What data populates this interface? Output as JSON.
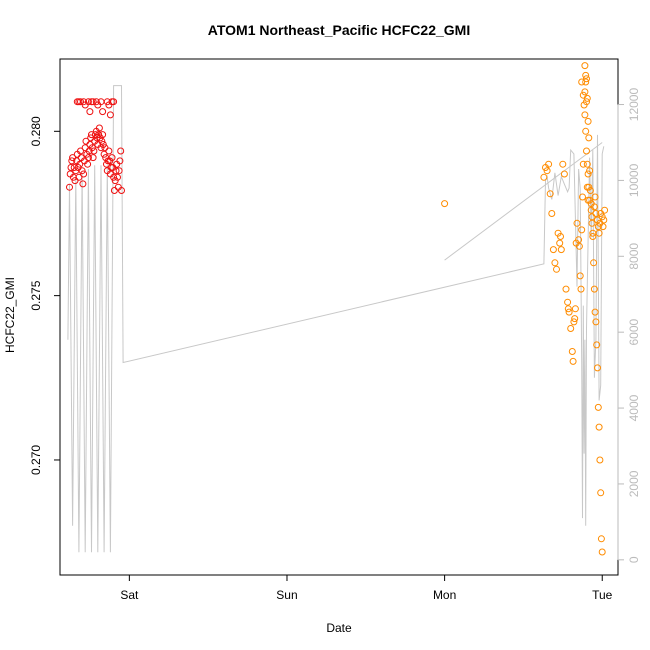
{
  "chart_data": {
    "type": "scatter",
    "title": "ATOM1 Northeast_Pacific HCFC22_GMI",
    "xlabel": "Date",
    "ylabel": "HCFC22_GMI",
    "ylabel_right": "",
    "x_ticks": [
      {
        "label": "Sat",
        "day": 0
      },
      {
        "label": "Sun",
        "day": 1
      },
      {
        "label": "Mon",
        "day": 2
      },
      {
        "label": "Tue",
        "day": 3
      }
    ],
    "xlim": [
      -0.44,
      3.1
    ],
    "ylim": [
      0.2665,
      0.2822
    ],
    "y_ticks": [
      0.27,
      0.275,
      0.28
    ],
    "y_tick_labels": [
      "0.270",
      "0.275",
      "0.280"
    ],
    "y2lim": [
      -400,
      13200
    ],
    "y2_ticks": [
      0,
      2000,
      4000,
      6000,
      8000,
      10000,
      12000
    ],
    "y2_tick_labels": [
      "0",
      "2000",
      "4000",
      "6000",
      "8000",
      "10000",
      "12000"
    ],
    "colors": {
      "series_early": "#ee1111",
      "series_late": "#ff8c00",
      "altitude_line": "#c8c8c8"
    },
    "series": [
      {
        "marker": "open-circle",
        "color": "#ee1111",
        "points": [
          [
            -0.38,
            0.2783
          ],
          [
            -0.375,
            0.2787
          ],
          [
            -0.37,
            0.2789
          ],
          [
            -0.365,
            0.2791
          ],
          [
            -0.36,
            0.2792
          ],
          [
            -0.355,
            0.2786
          ],
          [
            -0.35,
            0.2789
          ],
          [
            -0.345,
            0.2785
          ],
          [
            -0.34,
            0.2788
          ],
          [
            -0.335,
            0.2791
          ],
          [
            -0.33,
            0.2793
          ],
          [
            -0.325,
            0.2789
          ],
          [
            -0.32,
            0.2786
          ],
          [
            -0.315,
            0.279
          ],
          [
            -0.31,
            0.2794
          ],
          [
            -0.305,
            0.2792
          ],
          [
            -0.3,
            0.2788
          ],
          [
            -0.295,
            0.2784
          ],
          [
            -0.29,
            0.2787
          ],
          [
            -0.285,
            0.2791
          ],
          [
            -0.28,
            0.2795
          ],
          [
            -0.275,
            0.2797
          ],
          [
            -0.27,
            0.2793
          ],
          [
            -0.265,
            0.279
          ],
          [
            -0.26,
            0.2792
          ],
          [
            -0.255,
            0.2794
          ],
          [
            -0.25,
            0.2796
          ],
          [
            -0.245,
            0.2798
          ],
          [
            -0.24,
            0.2799
          ],
          [
            -0.235,
            0.2795
          ],
          [
            -0.23,
            0.2792
          ],
          [
            -0.225,
            0.2794
          ],
          [
            -0.22,
            0.2797
          ],
          [
            -0.215,
            0.2799
          ],
          [
            -0.21,
            0.28
          ],
          [
            -0.205,
            0.2798
          ],
          [
            -0.2,
            0.2796
          ],
          [
            -0.195,
            0.2799
          ],
          [
            -0.19,
            0.2801
          ],
          [
            -0.185,
            0.2798
          ],
          [
            -0.18,
            0.2795
          ],
          [
            -0.175,
            0.2797
          ],
          [
            -0.17,
            0.2799
          ],
          [
            -0.165,
            0.2796
          ],
          [
            -0.16,
            0.2793
          ],
          [
            -0.155,
            0.2795
          ],
          [
            -0.15,
            0.2792
          ],
          [
            -0.145,
            0.279
          ],
          [
            -0.14,
            0.2788
          ],
          [
            -0.135,
            0.2791
          ],
          [
            -0.13,
            0.2794
          ],
          [
            -0.125,
            0.2791
          ],
          [
            -0.12,
            0.2787
          ],
          [
            -0.115,
            0.2789
          ],
          [
            -0.11,
            0.2792
          ],
          [
            -0.105,
            0.2789
          ],
          [
            -0.1,
            0.2786
          ],
          [
            -0.095,
            0.2782
          ],
          [
            -0.09,
            0.2785
          ],
          [
            -0.085,
            0.2788
          ],
          [
            -0.08,
            0.279
          ],
          [
            -0.075,
            0.2786
          ],
          [
            -0.07,
            0.2783
          ],
          [
            -0.065,
            0.2788
          ],
          [
            -0.06,
            0.2791
          ],
          [
            -0.055,
            0.2794
          ],
          [
            -0.05,
            0.2782
          ],
          [
            -0.33,
            0.2809
          ],
          [
            -0.32,
            0.2809
          ],
          [
            -0.31,
            0.2809
          ],
          [
            -0.29,
            0.2809
          ],
          [
            -0.28,
            0.2808
          ],
          [
            -0.26,
            0.2809
          ],
          [
            -0.24,
            0.2809
          ],
          [
            -0.23,
            0.2809
          ],
          [
            -0.21,
            0.2809
          ],
          [
            -0.2,
            0.2808
          ],
          [
            -0.18,
            0.2809
          ],
          [
            -0.14,
            0.2809
          ],
          [
            -0.13,
            0.2808
          ],
          [
            -0.11,
            0.2809
          ],
          [
            -0.1,
            0.2809
          ],
          [
            -0.25,
            0.2806
          ],
          [
            -0.17,
            0.2806
          ],
          [
            -0.12,
            0.2805
          ]
        ]
      },
      {
        "marker": "open-circle",
        "color": "#ff8c00",
        "points": [
          [
            2.0,
            0.2778
          ],
          [
            2.63,
            0.2786
          ],
          [
            2.64,
            0.2789
          ],
          [
            2.65,
            0.2788
          ],
          [
            2.66,
            0.279
          ],
          [
            2.67,
            0.2781
          ],
          [
            2.68,
            0.2775
          ],
          [
            2.69,
            0.2764
          ],
          [
            2.7,
            0.276
          ],
          [
            2.71,
            0.2758
          ],
          [
            2.72,
            0.2769
          ],
          [
            2.73,
            0.2766
          ],
          [
            2.735,
            0.2768
          ],
          [
            2.74,
            0.2764
          ],
          [
            2.75,
            0.279
          ],
          [
            2.76,
            0.2787
          ],
          [
            2.77,
            0.2752
          ],
          [
            2.78,
            0.2748
          ],
          [
            2.785,
            0.2746
          ],
          [
            2.79,
            0.2745
          ],
          [
            2.8,
            0.274
          ],
          [
            2.81,
            0.2733
          ],
          [
            2.815,
            0.273
          ],
          [
            2.82,
            0.2742
          ],
          [
            2.825,
            0.2743
          ],
          [
            2.83,
            0.2746
          ],
          [
            2.835,
            0.2766
          ],
          [
            2.84,
            0.2772
          ],
          [
            2.85,
            0.2767
          ],
          [
            2.855,
            0.2765
          ],
          [
            2.86,
            0.2756
          ],
          [
            2.865,
            0.2752
          ],
          [
            2.87,
            0.277
          ],
          [
            2.875,
            0.278
          ],
          [
            2.88,
            0.279
          ],
          [
            2.885,
            0.2808
          ],
          [
            2.89,
            0.2812
          ],
          [
            2.895,
            0.2815
          ],
          [
            2.9,
            0.2816
          ],
          [
            2.905,
            0.281
          ],
          [
            2.91,
            0.2803
          ],
          [
            2.915,
            0.2798
          ],
          [
            2.92,
            0.2788
          ],
          [
            2.925,
            0.2782
          ],
          [
            2.93,
            0.2778
          ],
          [
            2.935,
            0.2774
          ],
          [
            2.94,
            0.2768
          ],
          [
            2.945,
            0.276
          ],
          [
            2.95,
            0.2752
          ],
          [
            2.955,
            0.2745
          ],
          [
            2.96,
            0.2742
          ],
          [
            2.965,
            0.2735
          ],
          [
            2.97,
            0.2728
          ],
          [
            2.975,
            0.2716
          ],
          [
            2.98,
            0.271
          ],
          [
            2.985,
            0.27
          ],
          [
            2.99,
            0.269
          ],
          [
            2.995,
            0.2676
          ],
          [
            3.0,
            0.2672
          ],
          [
            2.87,
            0.2815
          ],
          [
            2.88,
            0.2811
          ],
          [
            2.89,
            0.2805
          ],
          [
            2.895,
            0.28
          ],
          [
            2.9,
            0.2794
          ],
          [
            2.905,
            0.279
          ],
          [
            2.91,
            0.2787
          ],
          [
            2.915,
            0.2783
          ],
          [
            2.92,
            0.2779
          ],
          [
            2.93,
            0.2776
          ],
          [
            2.935,
            0.2772
          ],
          [
            2.94,
            0.2769
          ],
          [
            2.95,
            0.2777
          ],
          [
            2.955,
            0.278
          ],
          [
            2.96,
            0.2775
          ],
          [
            2.97,
            0.2773
          ],
          [
            2.975,
            0.2771
          ],
          [
            2.98,
            0.2769
          ],
          [
            2.985,
            0.2772
          ],
          [
            2.99,
            0.2775
          ],
          [
            3.0,
            0.2774
          ],
          [
            3.005,
            0.2771
          ],
          [
            3.01,
            0.2773
          ],
          [
            3.015,
            0.2776
          ],
          [
            2.89,
            0.282
          ],
          [
            2.895,
            0.2817
          ],
          [
            2.9,
            0.2809
          ],
          [
            2.905,
            0.2783
          ],
          [
            2.91,
            0.2779
          ]
        ]
      }
    ],
    "altitude_line": {
      "color": "#c8c8c8",
      "points": [
        [
          -0.39,
          5800
        ],
        [
          -0.38,
          9900
        ],
        [
          -0.36,
          900
        ],
        [
          -0.34,
          10100
        ],
        [
          -0.32,
          200
        ],
        [
          -0.3,
          10200
        ],
        [
          -0.28,
          200
        ],
        [
          -0.26,
          10300
        ],
        [
          -0.24,
          200
        ],
        [
          -0.22,
          10400
        ],
        [
          -0.2,
          200
        ],
        [
          -0.18,
          10400
        ],
        [
          -0.16,
          200
        ],
        [
          -0.14,
          10400
        ],
        [
          -0.12,
          200
        ],
        [
          -0.1,
          12500
        ],
        [
          -0.05,
          12500
        ],
        [
          -0.04,
          5200
        ],
        [
          2.63,
          7800
        ],
        [
          2.64,
          10000
        ],
        [
          2.65,
          10100
        ],
        [
          2.66,
          9800
        ],
        [
          2.68,
          9500
        ],
        [
          2.7,
          10200
        ],
        [
          2.72,
          9600
        ],
        [
          2.74,
          10100
        ],
        [
          2.76,
          9900
        ],
        [
          2.78,
          9700
        ],
        [
          2.79,
          9800
        ],
        [
          2.8,
          10800
        ],
        [
          2.82,
          10700
        ],
        [
          2.84,
          7200
        ],
        [
          2.85,
          10300
        ],
        [
          2.86,
          9800
        ],
        [
          2.87,
          5200
        ],
        [
          2.875,
          1100
        ],
        [
          2.88,
          6700
        ],
        [
          2.885,
          2800
        ],
        [
          2.89,
          5800
        ],
        [
          2.895,
          900
        ],
        [
          2.9,
          6100
        ],
        [
          2.92,
          10600
        ],
        [
          2.93,
          8500
        ],
        [
          2.94,
          10800
        ],
        [
          2.95,
          4800
        ],
        [
          2.96,
          5800
        ],
        [
          2.97,
          11200
        ],
        [
          2.98,
          4200
        ],
        [
          2.99,
          4600
        ],
        [
          3.0,
          10700
        ],
        [
          3.01,
          10900
        ]
      ],
      "segment2": [
        [
          2.0,
          7900
        ],
        [
          3.0,
          11000
        ]
      ]
    }
  }
}
